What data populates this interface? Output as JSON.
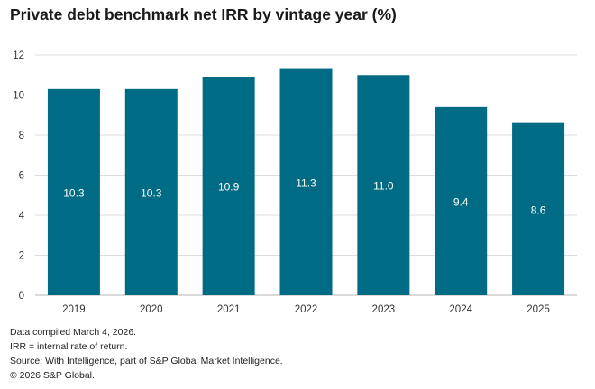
{
  "chart_data": {
    "type": "bar",
    "title": "Private debt benchmark net IRR by vintage year (%)",
    "categories": [
      "2019",
      "2020",
      "2021",
      "2022",
      "2023",
      "2024",
      "2025"
    ],
    "values": [
      10.3,
      10.3,
      10.9,
      11.3,
      11.0,
      9.4,
      8.6
    ],
    "data_labels": [
      "10.3",
      "10.3",
      "10.9",
      "11.3",
      "11.0",
      "9.4",
      "8.6"
    ],
    "xlabel": "",
    "ylabel": "",
    "ylim": [
      0,
      12
    ],
    "yticks": [
      0,
      2,
      4,
      6,
      8,
      10,
      12
    ],
    "grid": true,
    "bar_color": "#006B84"
  },
  "notes": [
    "Data compiled March 4, 2026.",
    "IRR = internal rate of return.",
    "Source: With Intelligence, part of S&P Global Market Intelligence.",
    "© 2026 S&P Global."
  ]
}
